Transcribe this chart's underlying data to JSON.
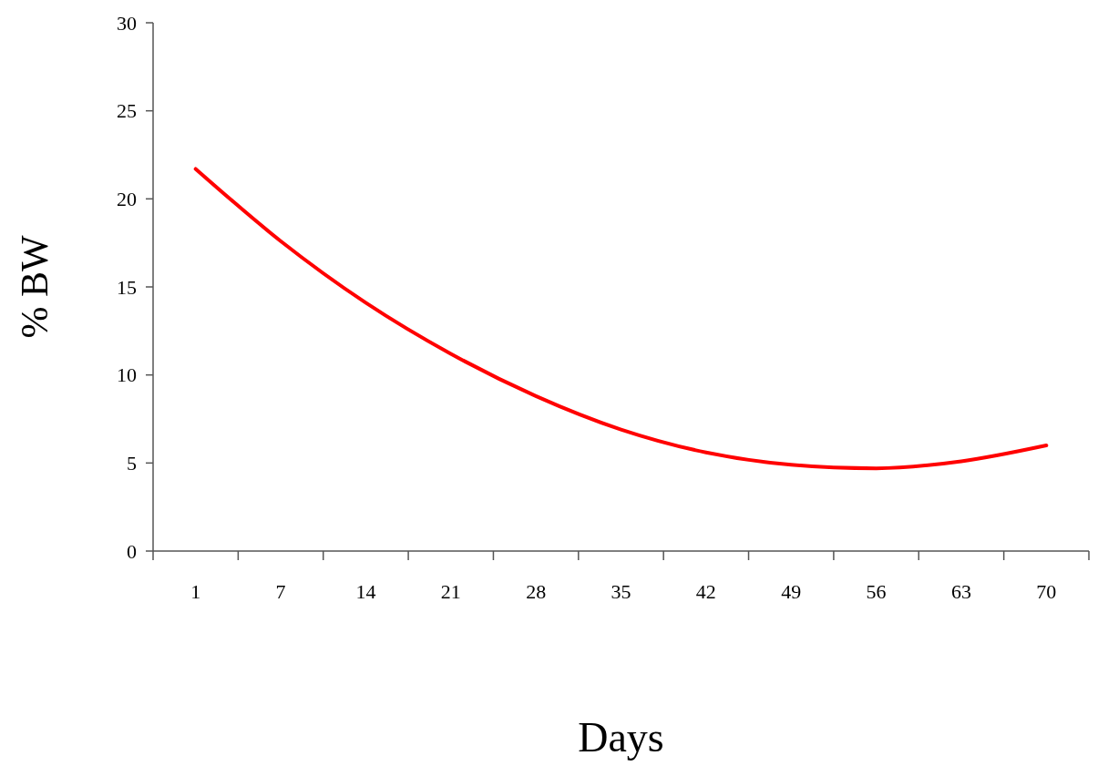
{
  "chart_data": {
    "type": "line",
    "xlabel": "Days",
    "ylabel": "% BW",
    "categories": [
      "1",
      "7",
      "14",
      "21",
      "28",
      "35",
      "42",
      "49",
      "56",
      "63",
      "70"
    ],
    "series": [
      {
        "color": "#ff0000",
        "values": [
          21.7,
          17.6,
          14.1,
          11.2,
          8.8,
          6.9,
          5.6,
          4.9,
          4.7,
          5.1,
          6.0
        ]
      }
    ],
    "ylim": [
      0,
      30
    ],
    "yticks": [
      0,
      5,
      10,
      15,
      20,
      25,
      30
    ],
    "grid": false,
    "marker": "none",
    "line_style": "solid"
  }
}
